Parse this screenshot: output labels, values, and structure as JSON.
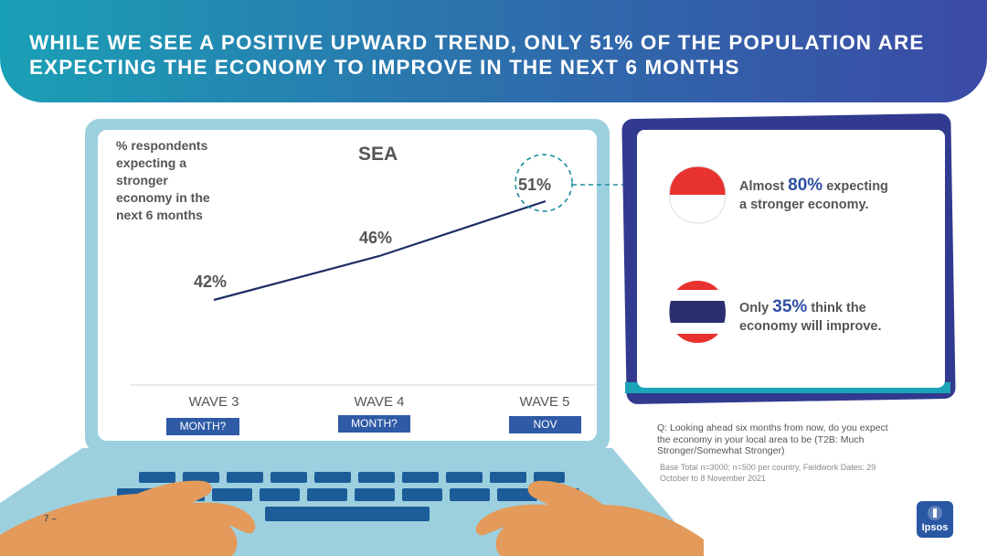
{
  "header": {
    "title": "WHILE WE SEE A POSITIVE UPWARD TREND, ONLY 51% OF THE POPULATION ARE EXPECTING THE ECONOMY TO IMPROVE IN THE NEXT 6 MONTHS"
  },
  "chart_data": {
    "type": "line",
    "title": "SEA",
    "ylabel": "% respondents expecting a stronger economy in the next 6 months",
    "categories": [
      "WAVE 3",
      "WAVE 4",
      "WAVE 5"
    ],
    "sublabels": [
      "MONTH?",
      "MONTH?",
      "NOV"
    ],
    "values": [
      42,
      46,
      51
    ],
    "data_labels": [
      "42%",
      "46%",
      "51%"
    ],
    "ylim": [
      38,
      54
    ],
    "highlight_index": 2,
    "line_color": "#1c2e66",
    "grid": false
  },
  "callouts": [
    {
      "pre": "Almost ",
      "value": "80%",
      "post_1": " expecting",
      "post_2": "a stronger economy.",
      "flag": "indonesia-flag-icon"
    },
    {
      "pre": "Only ",
      "value": "35%",
      "post_1": " think the",
      "post_2": "economy will improve.",
      "flag": "thailand-flag-icon"
    }
  ],
  "footnotes": {
    "question": "Q: Looking ahead six months from now, do you expect the economy in your local area to be (T2B: Much Stronger/Somewhat Stronger)",
    "base": "Base Total n=3000; n=500 per country, Fieldwork Dates: 29 October to 8 November  2021"
  },
  "page_number": "7 –",
  "logo_text": "Ipsos",
  "colors": {
    "header_start": "#1aa0b6",
    "header_end": "#3b4aa6",
    "accent_blue": "#2e5aa6",
    "highlight_teal": "#1b8fa0",
    "tablet_frame": "#313a8f",
    "skin": "#e39a5a"
  }
}
